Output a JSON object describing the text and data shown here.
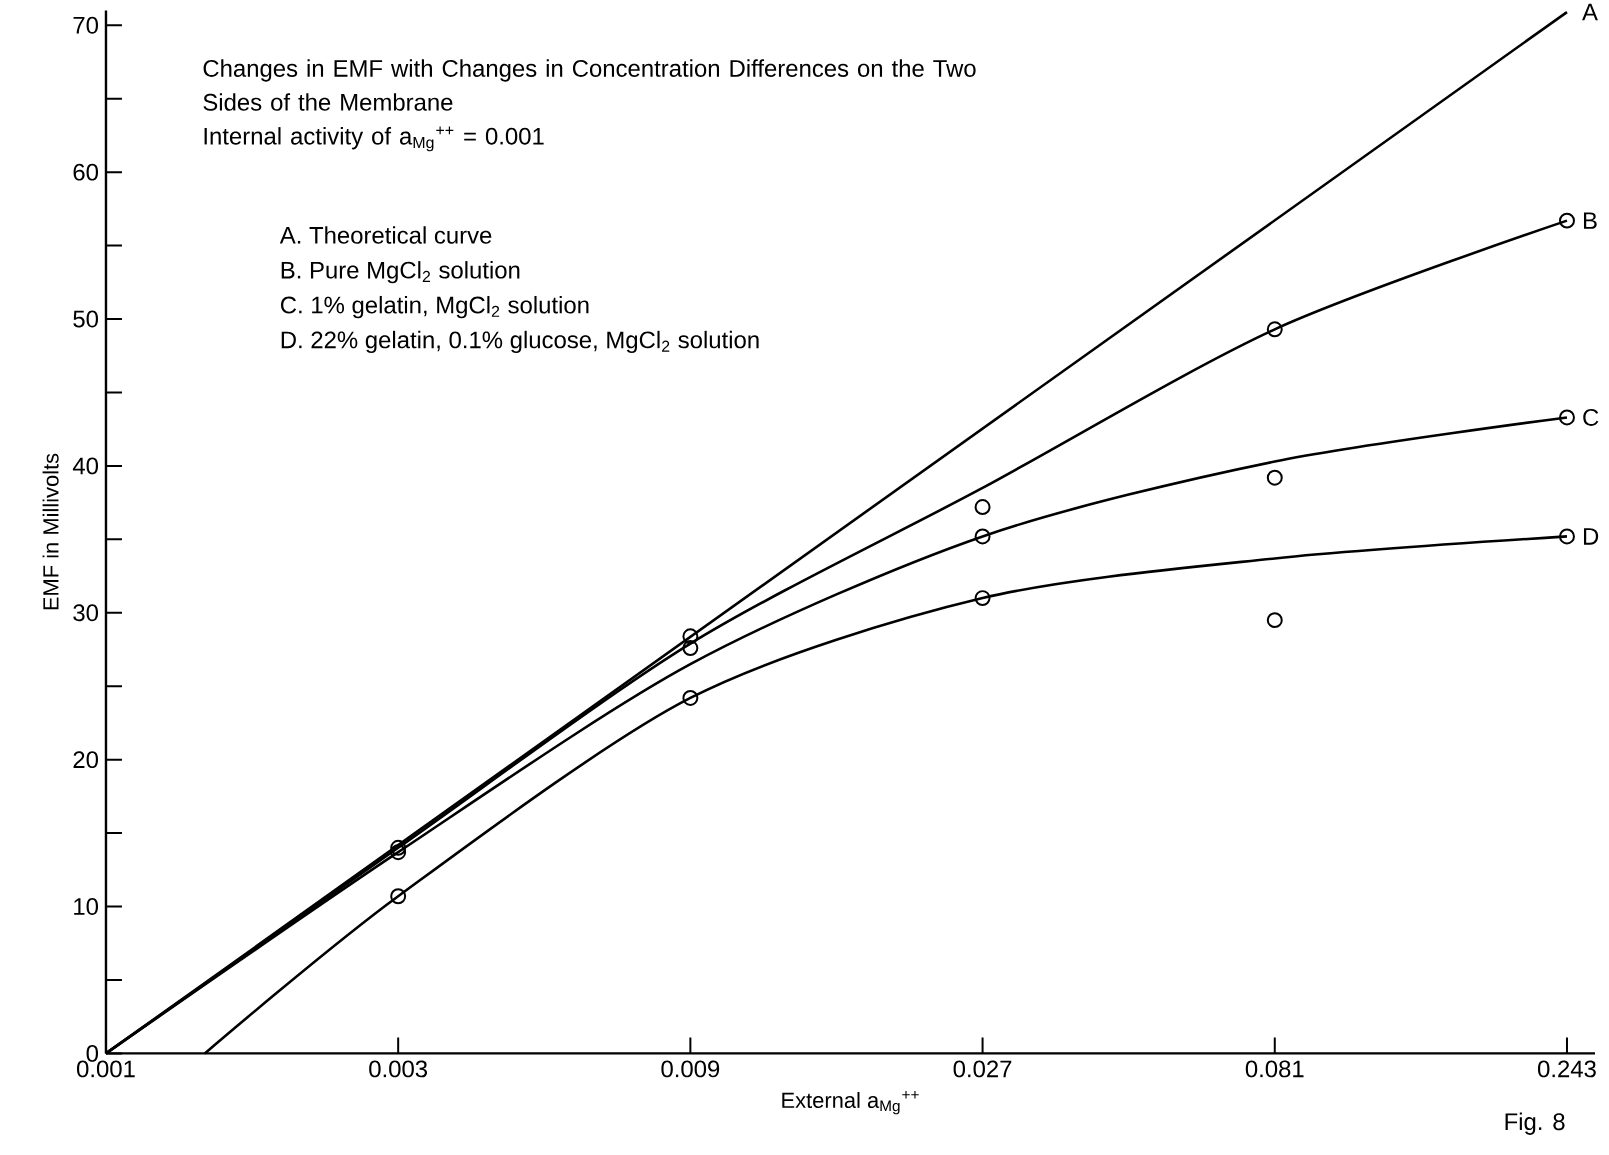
{
  "chart_data": {
    "type": "line",
    "title": "Changes in EMF with Changes in Concentration Differences on the Two Sides of the Membrane",
    "subtitle": "Internal activity of a$_{Mg}$$^{++}$ = 0.001",
    "xlabel": "External a$_{Mg}$$^{++}$",
    "ylabel": "EMF in Millivolts",
    "log": "x",
    "xlim": [
      0.001,
      0.27
    ],
    "xticks": [
      0.001,
      0.003,
      0.009,
      0.027,
      0.081,
      0.243
    ],
    "ylim": [
      0,
      71
    ],
    "yticks": [
      0,
      {
        "value": 5,
        "label": null
      },
      10,
      {
        "value": 15,
        "label": null
      },
      20,
      {
        "value": 25,
        "label": null
      },
      30,
      {
        "value": 35,
        "label": null
      },
      40,
      {
        "value": 45,
        "label": null
      },
      50,
      {
        "value": 55,
        "label": null
      },
      60,
      {
        "value": 65,
        "label": null
      },
      70
    ],
    "grid": false,
    "series": [
      {
        "name": "A",
        "type": "line",
        "color": "#000000",
        "marker": "none",
        "x": [
          0.001,
          0.243
        ],
        "values": [
          0,
          70.9
        ]
      },
      {
        "name": "B",
        "type": "line",
        "color": "#000000",
        "marker": "none",
        "x": [
          0.001,
          0.003,
          0.009,
          0.027,
          0.081,
          0.243
        ],
        "values": [
          0,
          14.0,
          27.9,
          38.5,
          49.3,
          56.7
        ]
      },
      {
        "name": "C",
        "type": "line",
        "color": "#000000",
        "marker": "none",
        "x": [
          0.001,
          0.003,
          0.009,
          0.027,
          0.081,
          0.243
        ],
        "values": [
          0,
          13.7,
          26.5,
          35.2,
          40.3,
          43.3
        ]
      },
      {
        "name": "D",
        "type": "line",
        "color": "#000000",
        "marker": "none",
        "x": [
          0.00145,
          0.003,
          0.009,
          0.027,
          0.081,
          0.243
        ],
        "values": [
          0,
          10.7,
          24.2,
          31.0,
          33.7,
          35.2
        ]
      },
      {
        "type": "scatter",
        "color": "#000000",
        "marker": "circle",
        "x": [
          0.003,
          0.009,
          0.027,
          0.081,
          0.243
        ],
        "values": [
          14.0,
          28.4,
          37.2,
          49.3,
          56.7
        ]
      },
      {
        "type": "scatter",
        "color": "#000000",
        "marker": "circle",
        "x": [
          0.003,
          0.009,
          0.027,
          0.081,
          0.243
        ],
        "values": [
          13.7,
          27.6,
          35.2,
          39.2,
          43.3
        ]
      },
      {
        "type": "scatter",
        "color": "#000000",
        "marker": "circle",
        "x": [
          0.003,
          0.009,
          0.027,
          0.081,
          0.243
        ],
        "values": [
          10.7,
          24.2,
          31.0,
          29.5,
          35.2
        ]
      }
    ],
    "annotations": [
      "A. Theoretical curve",
      "B. Pure MgCl$_{2}$ solution",
      "C. 1% gelatin, MgCl$_{2}$ solution",
      "D. 22% gelatin, 0.1% glucose, MgCl$_{2}$ solution",
      "Fig. 8"
    ]
  }
}
